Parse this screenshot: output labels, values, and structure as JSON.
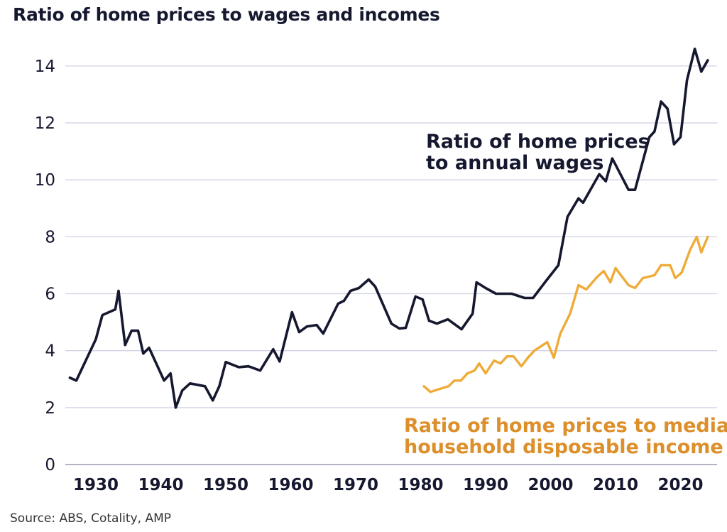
{
  "chart_data": {
    "type": "line",
    "title": "Ratio of home prices to wages and incomes",
    "source": "Source: ABS, Cotality, AMP",
    "xlabel": "",
    "ylabel": "",
    "xlim": [
      1924,
      2025
    ],
    "ylim": [
      0,
      15
    ],
    "yticks": [
      0,
      2,
      4,
      6,
      8,
      10,
      12,
      14
    ],
    "xticks": [
      1930,
      1940,
      1950,
      1960,
      1970,
      1980,
      1990,
      2000,
      2010,
      2020
    ],
    "grid": "horizontal",
    "series": [
      {
        "name": "Ratio of home prices to annual wages",
        "label_lines": [
          "Ratio of home prices",
          "to annual wages"
        ],
        "color": "#15182f",
        "points": [
          [
            1926,
            3.05
          ],
          [
            1927,
            2.95
          ],
          [
            1930,
            4.4
          ],
          [
            1931,
            5.25
          ],
          [
            1933,
            5.45
          ],
          [
            1933.5,
            6.1
          ],
          [
            1934.5,
            4.2
          ],
          [
            1935.5,
            4.7
          ],
          [
            1936.5,
            4.7
          ],
          [
            1937.3,
            3.9
          ],
          [
            1938.2,
            4.1
          ],
          [
            1940.5,
            2.95
          ],
          [
            1941.5,
            3.2
          ],
          [
            1942.3,
            2.0
          ],
          [
            1943.3,
            2.6
          ],
          [
            1944.5,
            2.85
          ],
          [
            1946.8,
            2.75
          ],
          [
            1948,
            2.25
          ],
          [
            1949,
            2.75
          ],
          [
            1950,
            3.6
          ],
          [
            1952,
            3.42
          ],
          [
            1953.5,
            3.45
          ],
          [
            1955.3,
            3.3
          ],
          [
            1957.3,
            4.05
          ],
          [
            1958.3,
            3.62
          ],
          [
            1960.2,
            5.35
          ],
          [
            1961.3,
            4.65
          ],
          [
            1962.5,
            4.85
          ],
          [
            1964,
            4.9
          ],
          [
            1965,
            4.6
          ],
          [
            1967.3,
            5.65
          ],
          [
            1968.2,
            5.75
          ],
          [
            1969.2,
            6.1
          ],
          [
            1970.5,
            6.2
          ],
          [
            1972,
            6.5
          ],
          [
            1973,
            6.25
          ],
          [
            1975.5,
            4.95
          ],
          [
            1976.7,
            4.78
          ],
          [
            1977.7,
            4.8
          ],
          [
            1979.2,
            5.9
          ],
          [
            1980.3,
            5.8
          ],
          [
            1981.3,
            5.05
          ],
          [
            1982.5,
            4.95
          ],
          [
            1984.2,
            5.1
          ],
          [
            1986.3,
            4.75
          ],
          [
            1988,
            5.3
          ],
          [
            1988.6,
            6.4
          ],
          [
            1990,
            6.2
          ],
          [
            1991.6,
            6.0
          ],
          [
            1994,
            6.0
          ],
          [
            1996,
            5.85
          ],
          [
            1997.3,
            5.85
          ],
          [
            1999.3,
            6.45
          ],
          [
            2001.2,
            7.0
          ],
          [
            2002.6,
            8.7
          ],
          [
            2004.3,
            9.35
          ],
          [
            2005,
            9.2
          ],
          [
            2007.5,
            10.2
          ],
          [
            2008.5,
            9.95
          ],
          [
            2009.5,
            10.75
          ],
          [
            2012,
            9.65
          ],
          [
            2013,
            9.65
          ],
          [
            2015.2,
            11.5
          ],
          [
            2016,
            11.7
          ],
          [
            2017,
            12.75
          ],
          [
            2018,
            12.5
          ],
          [
            2019,
            11.25
          ],
          [
            2020,
            11.5
          ],
          [
            2021,
            13.5
          ],
          [
            2022.2,
            14.6
          ],
          [
            2023.2,
            13.8
          ],
          [
            2024.2,
            14.2
          ]
        ]
      },
      {
        "name": "Ratio of home prices to median household disposable income",
        "label_lines": [
          "Ratio of home prices to median",
          "household disposable income"
        ],
        "color": "#efab38",
        "label_color": "#dc8f2a",
        "points": [
          [
            1980.5,
            2.75
          ],
          [
            1981.5,
            2.55
          ],
          [
            1984.3,
            2.75
          ],
          [
            1985.2,
            2.95
          ],
          [
            1986.2,
            2.95
          ],
          [
            1987.2,
            3.2
          ],
          [
            1988.3,
            3.3
          ],
          [
            1989,
            3.55
          ],
          [
            1990,
            3.2
          ],
          [
            1991.3,
            3.65
          ],
          [
            1992.3,
            3.55
          ],
          [
            1993.3,
            3.8
          ],
          [
            1994.3,
            3.8
          ],
          [
            1995.5,
            3.45
          ],
          [
            1996.5,
            3.75
          ],
          [
            1997.5,
            4.0
          ],
          [
            1999.5,
            4.3
          ],
          [
            2000.5,
            3.75
          ],
          [
            2001.5,
            4.6
          ],
          [
            2003,
            5.3
          ],
          [
            2004.3,
            6.3
          ],
          [
            2005.5,
            6.15
          ],
          [
            2007.2,
            6.6
          ],
          [
            2008.2,
            6.8
          ],
          [
            2009.2,
            6.4
          ],
          [
            2010,
            6.9
          ],
          [
            2011,
            6.6
          ],
          [
            2012,
            6.3
          ],
          [
            2013,
            6.2
          ],
          [
            2014.2,
            6.55
          ],
          [
            2016,
            6.65
          ],
          [
            2017,
            7.0
          ],
          [
            2018.4,
            7.0
          ],
          [
            2019.2,
            6.55
          ],
          [
            2020.2,
            6.75
          ],
          [
            2021.5,
            7.55
          ],
          [
            2022.5,
            8.0
          ],
          [
            2023.2,
            7.45
          ],
          [
            2024.2,
            8.0
          ]
        ]
      }
    ]
  }
}
